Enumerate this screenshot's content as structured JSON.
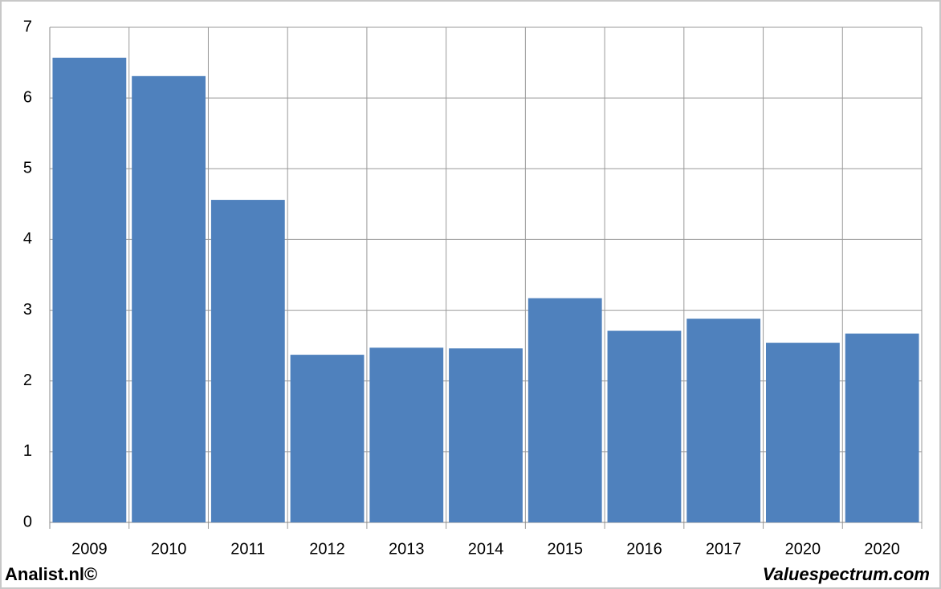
{
  "chart_data": {
    "type": "bar",
    "categories": [
      "2009",
      "2010",
      "2011",
      "2012",
      "2013",
      "2014",
      "2015",
      "2016",
      "2017",
      "2020",
      "2020"
    ],
    "values": [
      6.57,
      6.31,
      4.56,
      2.37,
      2.47,
      2.46,
      3.17,
      2.71,
      2.88,
      2.54,
      2.67
    ],
    "color": "#4f81bd",
    "ylim": [
      0,
      7
    ],
    "yticks": [
      0,
      1,
      2,
      3,
      4,
      5,
      6,
      7
    ],
    "grid": true,
    "footer_left": "Analist.nl©",
    "footer_right": "Valuespectrum.com"
  }
}
